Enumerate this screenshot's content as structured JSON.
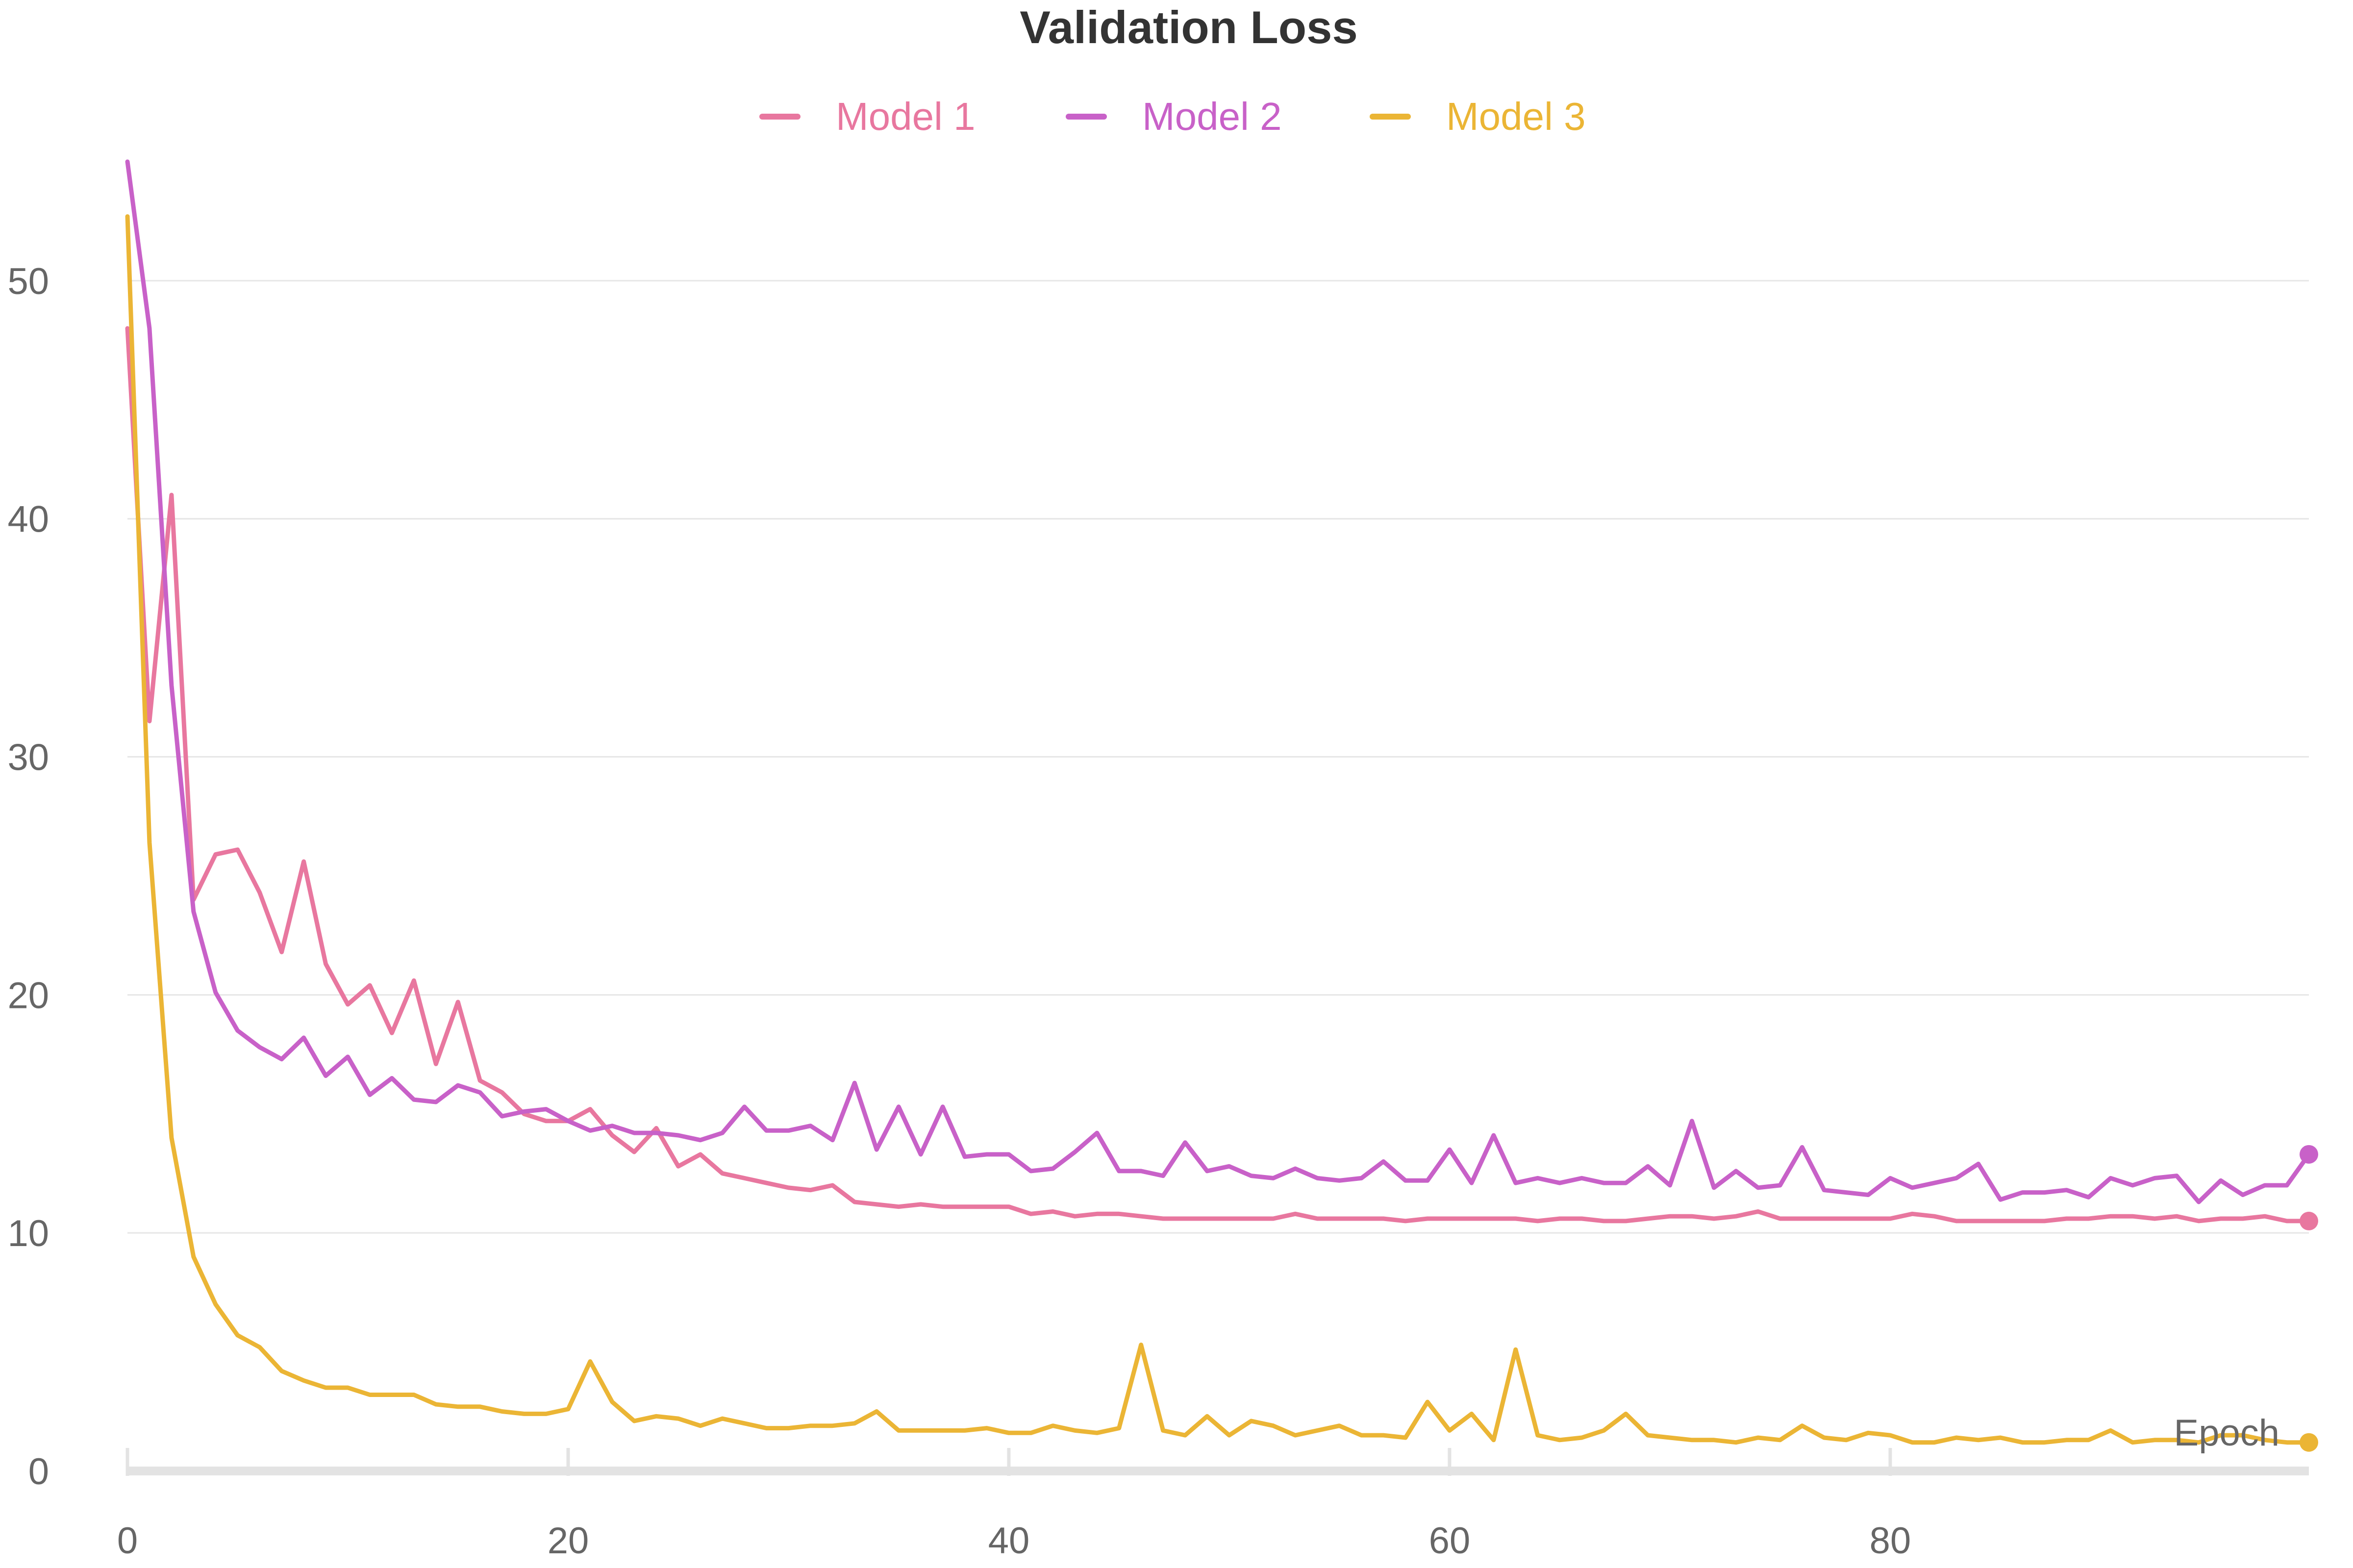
{
  "chart_data": {
    "type": "line",
    "title": "Validation Loss",
    "xlabel": "Epoch",
    "ylabel": "",
    "xlim": [
      0,
      99
    ],
    "ylim": [
      0,
      55
    ],
    "x_ticks": [
      0,
      20,
      40,
      60,
      80
    ],
    "y_ticks": [
      0,
      10,
      20,
      30,
      40,
      50
    ],
    "grid": "horizontal",
    "legend_position": "top-center",
    "x": [
      0,
      1,
      2,
      3,
      4,
      5,
      6,
      7,
      8,
      9,
      10,
      11,
      12,
      13,
      14,
      15,
      16,
      17,
      18,
      19,
      20,
      21,
      22,
      23,
      24,
      25,
      26,
      27,
      28,
      29,
      30,
      31,
      32,
      33,
      34,
      35,
      36,
      37,
      38,
      39,
      40,
      41,
      42,
      43,
      44,
      45,
      46,
      47,
      48,
      49,
      50,
      51,
      52,
      53,
      54,
      55,
      56,
      57,
      58,
      59,
      60,
      61,
      62,
      63,
      64,
      65,
      66,
      67,
      68,
      69,
      70,
      71,
      72,
      73,
      74,
      75,
      76,
      77,
      78,
      79,
      80,
      81,
      82,
      83,
      84,
      85,
      86,
      87,
      88,
      89,
      90,
      91,
      92,
      93,
      94,
      95,
      96,
      97,
      98,
      99
    ],
    "series": [
      {
        "name": "Model 1",
        "color": "#e8779f",
        "values": [
          48.0,
          31.5,
          41.0,
          24.0,
          25.9,
          26.1,
          24.3,
          21.8,
          25.6,
          21.3,
          19.6,
          20.4,
          18.4,
          20.6,
          17.1,
          19.7,
          16.4,
          15.9,
          15.0,
          14.7,
          14.7,
          15.2,
          14.1,
          13.4,
          14.4,
          12.8,
          13.3,
          12.5,
          12.3,
          12.1,
          11.9,
          11.8,
          12.0,
          11.3,
          11.2,
          11.1,
          11.2,
          11.1,
          11.1,
          11.1,
          11.1,
          10.8,
          10.9,
          10.7,
          10.8,
          10.8,
          10.7,
          10.6,
          10.6,
          10.6,
          10.6,
          10.6,
          10.6,
          10.8,
          10.6,
          10.6,
          10.6,
          10.6,
          10.5,
          10.6,
          10.6,
          10.6,
          10.6,
          10.6,
          10.5,
          10.6,
          10.6,
          10.5,
          10.5,
          10.6,
          10.7,
          10.7,
          10.6,
          10.7,
          10.9,
          10.6,
          10.6,
          10.6,
          10.6,
          10.6,
          10.6,
          10.8,
          10.7,
          10.5,
          10.5,
          10.5,
          10.5,
          10.5,
          10.6,
          10.6,
          10.7,
          10.7,
          10.6,
          10.7,
          10.5,
          10.6,
          10.6,
          10.7,
          10.5,
          10.5
        ]
      },
      {
        "name": "Model 2",
        "color": "#c861c8",
        "values": [
          55.0,
          48.0,
          33.0,
          23.5,
          20.1,
          18.5,
          17.8,
          17.3,
          18.2,
          16.6,
          17.4,
          15.8,
          16.5,
          15.6,
          15.5,
          16.2,
          15.9,
          14.9,
          15.1,
          15.2,
          14.7,
          14.3,
          14.5,
          14.2,
          14.2,
          14.1,
          13.9,
          14.2,
          15.3,
          14.3,
          14.3,
          14.5,
          13.9,
          16.3,
          13.5,
          15.3,
          13.3,
          15.3,
          13.2,
          13.3,
          13.3,
          12.6,
          12.7,
          13.4,
          14.2,
          12.6,
          12.6,
          12.4,
          13.8,
          12.6,
          12.8,
          12.4,
          12.3,
          12.7,
          12.3,
          12.2,
          12.3,
          13.0,
          12.2,
          12.2,
          13.5,
          12.1,
          14.1,
          12.1,
          12.3,
          12.1,
          12.3,
          12.1,
          12.1,
          12.8,
          12.0,
          14.7,
          11.9,
          12.6,
          11.9,
          12.0,
          13.6,
          11.8,
          11.7,
          11.6,
          12.3,
          11.9,
          12.1,
          12.3,
          12.9,
          11.4,
          11.7,
          11.7,
          11.8,
          11.5,
          12.3,
          12.0,
          12.3,
          12.4,
          11.3,
          12.2,
          11.6,
          12.0,
          12.0,
          13.3
        ]
      },
      {
        "name": "Model 3",
        "color": "#ebb535",
        "values": [
          52.7,
          26.4,
          14.0,
          9.0,
          7.0,
          5.7,
          5.2,
          4.2,
          3.8,
          3.5,
          3.5,
          3.2,
          3.2,
          3.2,
          2.8,
          2.7,
          2.7,
          2.5,
          2.4,
          2.4,
          2.6,
          4.6,
          2.9,
          2.1,
          2.3,
          2.2,
          1.9,
          2.2,
          2.0,
          1.8,
          1.8,
          1.9,
          1.9,
          2.0,
          2.5,
          1.7,
          1.7,
          1.7,
          1.7,
          1.8,
          1.6,
          1.6,
          1.9,
          1.7,
          1.6,
          1.8,
          5.3,
          1.7,
          1.5,
          2.3,
          1.5,
          2.1,
          1.9,
          1.5,
          1.7,
          1.9,
          1.5,
          1.5,
          1.4,
          2.9,
          1.7,
          2.4,
          1.3,
          5.1,
          1.5,
          1.3,
          1.4,
          1.7,
          2.4,
          1.5,
          1.4,
          1.3,
          1.3,
          1.2,
          1.4,
          1.3,
          1.9,
          1.4,
          1.3,
          1.6,
          1.5,
          1.2,
          1.2,
          1.4,
          1.3,
          1.4,
          1.2,
          1.2,
          1.3,
          1.3,
          1.7,
          1.2,
          1.3,
          1.3,
          1.2,
          1.5,
          1.5,
          1.3,
          1.2,
          1.2
        ]
      }
    ]
  }
}
